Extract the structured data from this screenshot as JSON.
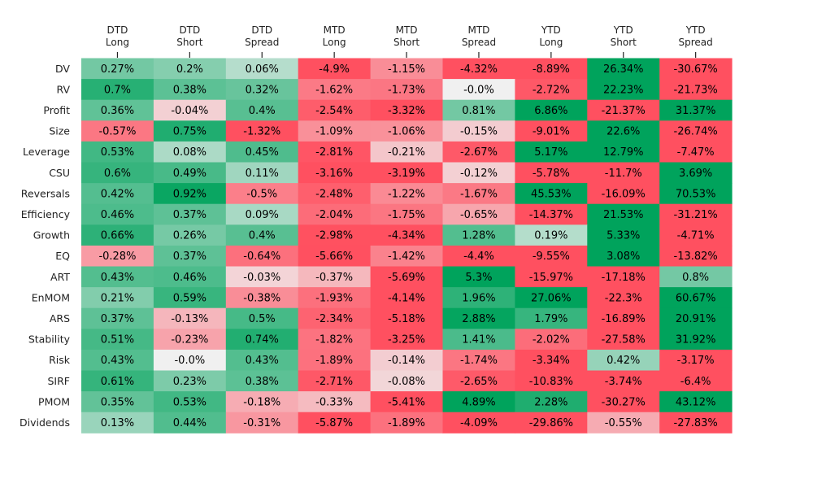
{
  "chart_data": {
    "type": "heatmap",
    "title": "",
    "columns": [
      [
        "DTD",
        "Long"
      ],
      [
        "DTD",
        "Short"
      ],
      [
        "DTD",
        "Spread"
      ],
      [
        "MTD",
        "Long"
      ],
      [
        "MTD",
        "Short"
      ],
      [
        "MTD",
        "Spread"
      ],
      [
        "YTD",
        "Long"
      ],
      [
        "YTD",
        "Short"
      ],
      [
        "YTD",
        "Spread"
      ]
    ],
    "rows": [
      "DV",
      "RV",
      "Profit",
      "Size",
      "Leverage",
      "CSU",
      "Reversals",
      "Efficiency",
      "Growth",
      "EQ",
      "ART",
      "EnMOM",
      "ARS",
      "Stability",
      "Risk",
      "SIRF",
      "PMOM",
      "Dividends"
    ],
    "values": [
      [
        0.27,
        0.2,
        0.06,
        -4.9,
        -1.15,
        -4.32,
        -8.89,
        26.34,
        -30.67
      ],
      [
        0.7,
        0.38,
        0.32,
        -1.62,
        -1.73,
        -0.0,
        -2.72,
        22.23,
        -21.73
      ],
      [
        0.36,
        -0.04,
        0.4,
        -2.54,
        -3.32,
        0.81,
        6.86,
        -21.37,
        31.37
      ],
      [
        -0.57,
        0.75,
        -1.32,
        -1.09,
        -1.06,
        -0.15,
        -9.01,
        22.6,
        -26.74
      ],
      [
        0.53,
        0.08,
        0.45,
        -2.81,
        -0.21,
        -2.67,
        5.17,
        12.79,
        -7.47
      ],
      [
        0.6,
        0.49,
        0.11,
        -3.16,
        -3.19,
        -0.12,
        -5.78,
        -11.7,
        3.69
      ],
      [
        0.42,
        0.92,
        -0.5,
        -2.48,
        -1.22,
        -1.67,
        45.53,
        -16.09,
        70.53
      ],
      [
        0.46,
        0.37,
        0.09,
        -2.04,
        -1.75,
        -0.65,
        -14.37,
        21.53,
        -31.21
      ],
      [
        0.66,
        0.26,
        0.4,
        -2.98,
        -4.34,
        1.28,
        0.19,
        5.33,
        -4.71
      ],
      [
        -0.28,
        0.37,
        -0.64,
        -5.66,
        -1.42,
        -4.4,
        -9.55,
        3.08,
        -13.82
      ],
      [
        0.43,
        0.46,
        -0.03,
        -0.37,
        -5.69,
        5.3,
        -15.97,
        -17.18,
        0.8
      ],
      [
        0.21,
        0.59,
        -0.38,
        -1.93,
        -4.14,
        1.96,
        27.06,
        -22.3,
        60.67
      ],
      [
        0.37,
        -0.13,
        0.5,
        -2.34,
        -5.18,
        2.88,
        1.79,
        -16.89,
        20.91
      ],
      [
        0.51,
        -0.23,
        0.74,
        -1.82,
        -3.25,
        1.41,
        -2.02,
        -27.58,
        31.92
      ],
      [
        0.43,
        -0.0,
        0.43,
        -1.89,
        -0.14,
        -1.74,
        -3.34,
        0.42,
        -3.17
      ],
      [
        0.61,
        0.23,
        0.38,
        -2.71,
        -0.08,
        -2.65,
        -10.83,
        -3.74,
        -6.4
      ],
      [
        0.35,
        0.53,
        -0.18,
        -0.33,
        -5.41,
        4.89,
        2.28,
        -30.27,
        43.12
      ],
      [
        0.13,
        0.44,
        -0.31,
        -5.87,
        -1.89,
        -4.09,
        -29.86,
        -0.55,
        -27.83
      ]
    ],
    "value_suffix": "%",
    "color_scale": {
      "negative": "#ff5060",
      "neutral": "#f0f0f0",
      "positive": "#00a35c",
      "scale_by_column_group": {
        "DTD": 1.0,
        "MTD": 3.0,
        "YTD": 3.0
      }
    }
  }
}
